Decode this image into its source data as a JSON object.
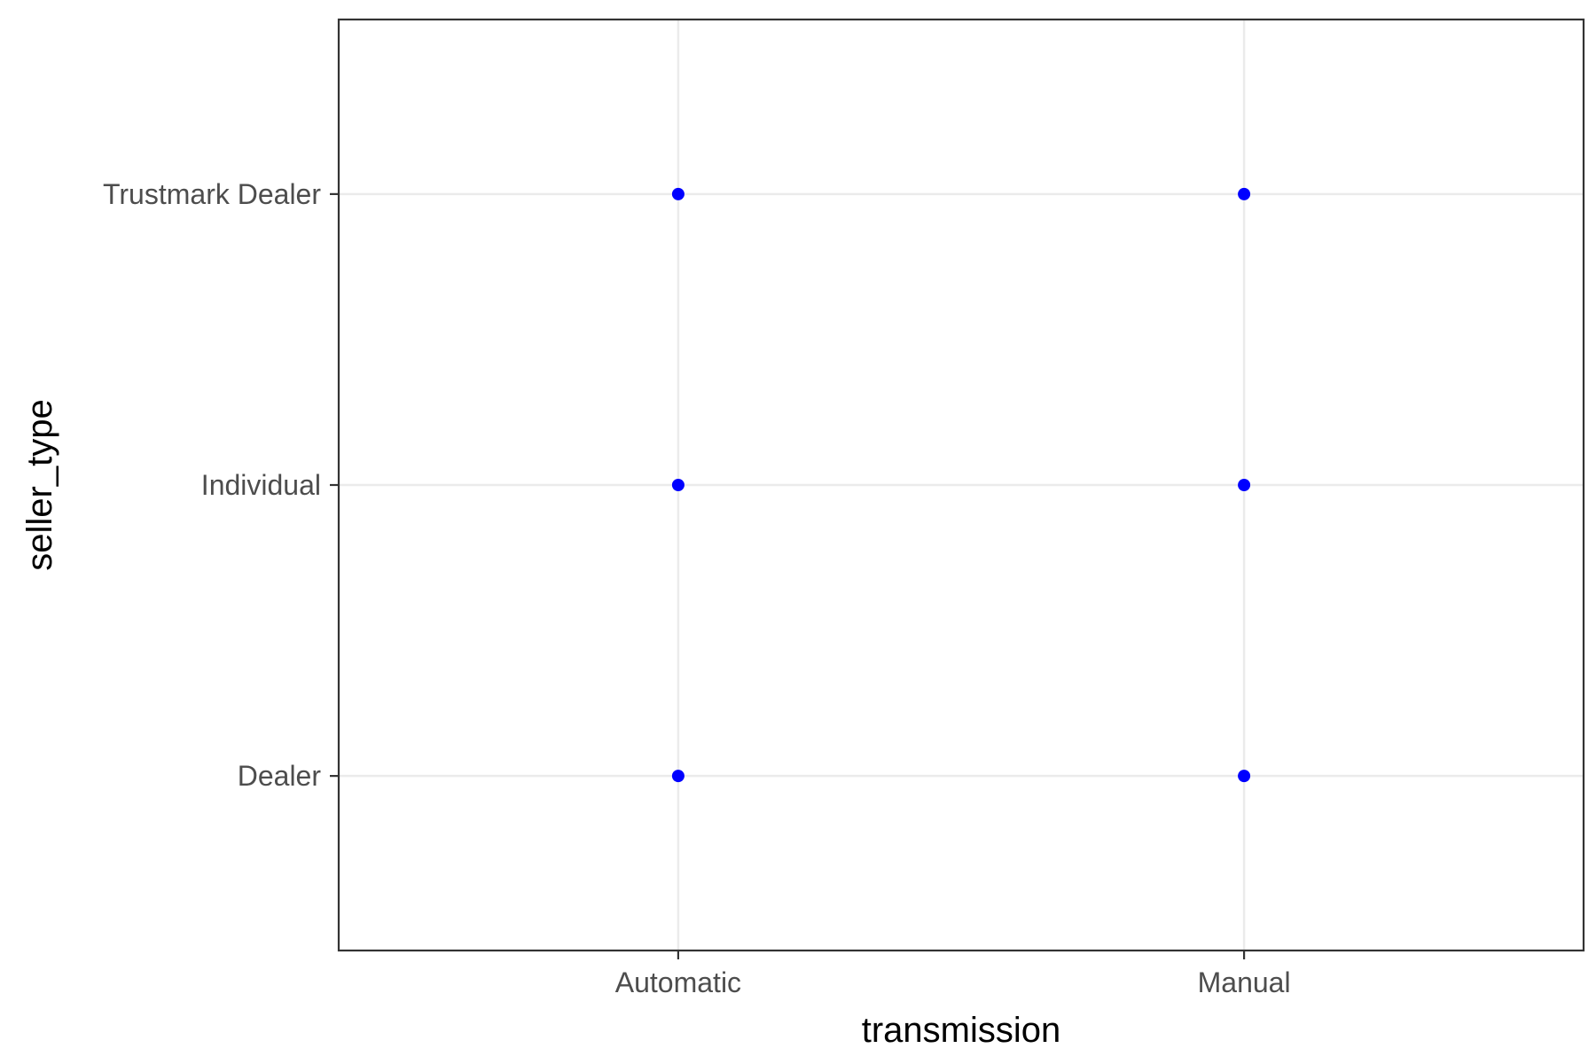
{
  "chart_data": {
    "type": "scatter",
    "title": "",
    "xlabel": "transmission",
    "ylabel": "seller_type",
    "x_categories": [
      "Automatic",
      "Manual"
    ],
    "y_categories": [
      "Dealer",
      "Individual",
      "Trustmark Dealer"
    ],
    "points": [
      {
        "x": "Automatic",
        "y": "Dealer"
      },
      {
        "x": "Automatic",
        "y": "Individual"
      },
      {
        "x": "Automatic",
        "y": "Trustmark Dealer"
      },
      {
        "x": "Manual",
        "y": "Dealer"
      },
      {
        "x": "Manual",
        "y": "Individual"
      },
      {
        "x": "Manual",
        "y": "Trustmark Dealer"
      }
    ],
    "point_color": "#0000ff",
    "grid": true,
    "legend": "none"
  }
}
